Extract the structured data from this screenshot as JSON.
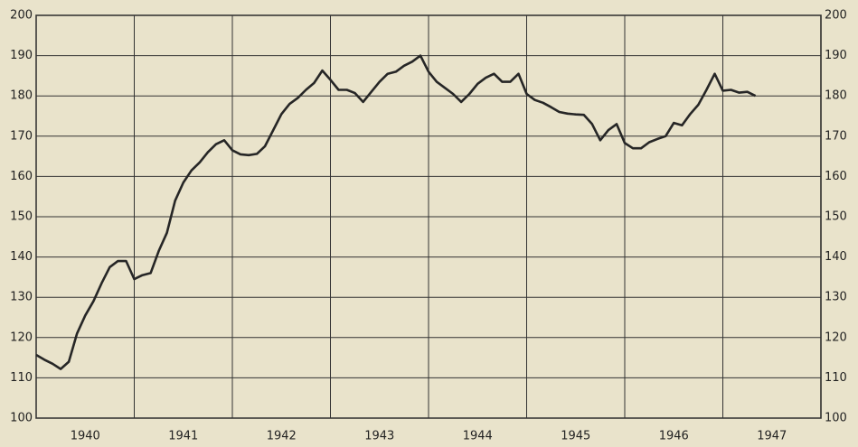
{
  "chart_data": {
    "type": "line",
    "x": [
      1940,
      1940.083,
      1940.167,
      1940.25,
      1940.333,
      1940.417,
      1940.5,
      1940.583,
      1940.667,
      1940.75,
      1940.833,
      1940.917,
      1941,
      1941.083,
      1941.167,
      1941.25,
      1941.333,
      1941.417,
      1941.5,
      1941.583,
      1941.667,
      1941.75,
      1941.833,
      1941.917,
      1942,
      1942.083,
      1942.167,
      1942.25,
      1942.333,
      1942.417,
      1942.5,
      1942.583,
      1942.667,
      1942.75,
      1942.833,
      1942.917,
      1943,
      1943.083,
      1943.167,
      1943.25,
      1943.333,
      1943.417,
      1943.5,
      1943.583,
      1943.667,
      1943.75,
      1943.833,
      1943.917,
      1944,
      1944.083,
      1944.167,
      1944.25,
      1944.333,
      1944.417,
      1944.5,
      1944.583,
      1944.667,
      1944.75,
      1944.833,
      1944.917,
      1945,
      1945.083,
      1945.167,
      1945.25,
      1945.333,
      1945.417,
      1945.5,
      1945.583,
      1945.667,
      1945.75,
      1945.833,
      1945.917,
      1946,
      1946.083,
      1946.167,
      1946.25,
      1946.333,
      1946.417,
      1946.5,
      1946.583,
      1946.667,
      1946.75,
      1946.833,
      1946.917,
      1947,
      1947.083,
      1947.167,
      1947.25,
      1947.333
    ],
    "values": [
      115.7,
      114.5,
      113.5,
      112.2,
      114,
      121,
      125.5,
      129,
      133.5,
      137.5,
      139,
      139,
      134.5,
      135.5,
      136,
      141.5,
      146,
      154,
      158.5,
      161.5,
      163.5,
      166,
      168,
      169,
      166.5,
      165.5,
      165.3,
      165.6,
      167.5,
      171.5,
      175.5,
      178,
      179.5,
      181.5,
      183.2,
      186.3,
      184,
      181.5,
      181.5,
      180.7,
      178.5,
      181,
      183.5,
      185.5,
      186,
      187.5,
      188.5,
      190,
      186,
      183.5,
      182,
      180.5,
      178.5,
      180.5,
      183,
      184.5,
      185.5,
      183.5,
      183.5,
      185.5,
      180.5,
      179,
      178.3,
      177.2,
      176,
      175.6,
      175.4,
      175.3,
      173,
      169,
      171.5,
      173,
      168.3,
      167,
      167,
      168.5,
      169.3,
      170,
      173.3,
      172.7,
      175.5,
      177.8,
      181.5,
      185.5,
      181.3,
      181.5,
      180.8,
      181,
      180
    ],
    "color": "#262626",
    "xlim": [
      1940,
      1948
    ],
    "xticks": [
      1940,
      1941,
      1942,
      1943,
      1944,
      1945,
      1946,
      1947
    ],
    "ylim": [
      100,
      200
    ],
    "yticks": [
      100,
      110,
      120,
      130,
      140,
      150,
      160,
      170,
      180,
      190,
      200
    ],
    "y2lim": [
      100,
      200
    ],
    "y2ticks": [
      100,
      110,
      120,
      130,
      140,
      150,
      160,
      170,
      180,
      190,
      200
    ],
    "grid": true
  }
}
